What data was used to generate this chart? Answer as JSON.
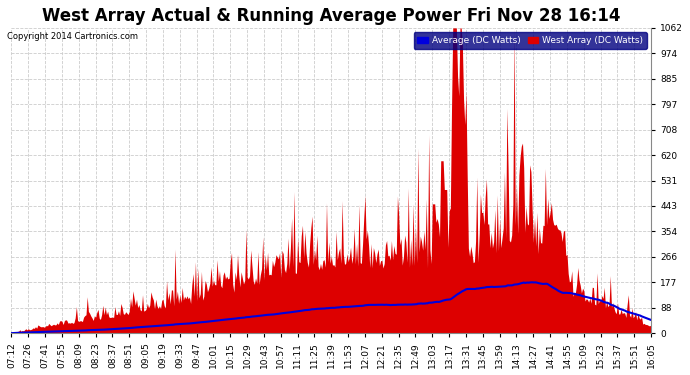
{
  "title": "West Array Actual & Running Average Power Fri Nov 28 16:14",
  "copyright": "Copyright 2014 Cartronics.com",
  "legend_labels": [
    "Average (DC Watts)",
    "West Array (DC Watts)"
  ],
  "ymin": 0.0,
  "ymax": 1062.4,
  "yticks": [
    0.0,
    88.5,
    177.1,
    265.6,
    354.1,
    442.7,
    531.2,
    619.7,
    708.3,
    796.8,
    885.3,
    973.8,
    1062.4
  ],
  "xtick_labels": [
    "07:12",
    "07:26",
    "07:41",
    "07:55",
    "08:09",
    "08:23",
    "08:37",
    "08:51",
    "09:05",
    "09:19",
    "09:33",
    "09:47",
    "10:01",
    "10:15",
    "10:29",
    "10:43",
    "10:57",
    "11:11",
    "11:25",
    "11:39",
    "11:53",
    "12:07",
    "12:21",
    "12:35",
    "12:49",
    "13:03",
    "13:17",
    "13:31",
    "13:45",
    "13:59",
    "14:13",
    "14:27",
    "14:41",
    "14:55",
    "15:09",
    "15:23",
    "15:37",
    "15:51",
    "16:05"
  ],
  "bg_color": "#ffffff",
  "grid_color": "#cccccc",
  "fill_color": "#dd0000",
  "line_color": "#0000dd",
  "line_width": 1.5,
  "title_fontsize": 12,
  "axis_fontsize": 6.5
}
